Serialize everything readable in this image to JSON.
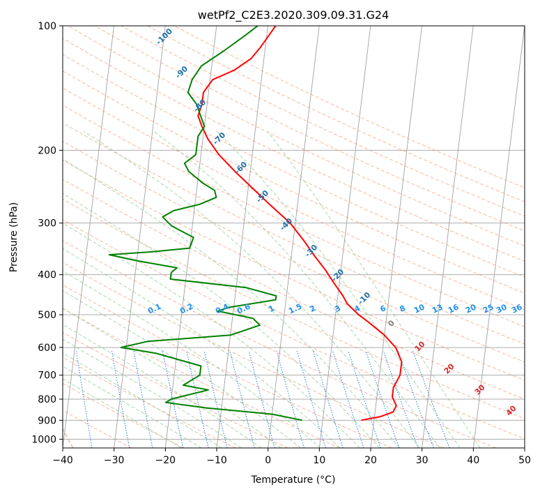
{
  "chart_data": {
    "type": "line",
    "title": "wetPf2_C2E3.2020.309.09.31.G24",
    "xlabel": "Temperature (°C)",
    "ylabel": "Pressure (hPa)",
    "xlim": [
      -40,
      50
    ],
    "ylim": [
      1050,
      100
    ],
    "y_scale": "log",
    "grid": true,
    "x_ticks": [
      -40,
      -30,
      -20,
      -10,
      0,
      10,
      20,
      30,
      40,
      50
    ],
    "x_tick_labels": [
      "−40",
      "−30",
      "−20",
      "−10",
      "0",
      "10",
      "20",
      "30",
      "40",
      "50"
    ],
    "y_ticks": [
      100,
      200,
      300,
      400,
      500,
      600,
      700,
      800,
      900,
      1000
    ],
    "y_tick_labels": [
      "100",
      "200",
      "300",
      "400",
      "500",
      "600",
      "700",
      "800",
      "900",
      "1000"
    ],
    "skew_per_decade": 72,
    "series": [
      {
        "kind": "temperature",
        "color": "#ff0000",
        "points": [
          [
            17.5,
            900
          ],
          [
            21.0,
            883
          ],
          [
            23.5,
            860
          ],
          [
            24.0,
            830
          ],
          [
            23.0,
            790
          ],
          [
            23.0,
            750
          ],
          [
            24.0,
            700
          ],
          [
            24.0,
            650
          ],
          [
            22.5,
            600
          ],
          [
            20.0,
            560
          ],
          [
            16.5,
            520
          ],
          [
            14.5,
            500
          ],
          [
            12.0,
            470
          ],
          [
            11.0,
            450
          ],
          [
            9.0,
            420
          ],
          [
            7.0,
            390
          ],
          [
            4.5,
            360
          ],
          [
            2.0,
            330
          ],
          [
            -1.0,
            300
          ],
          [
            -5.5,
            270
          ],
          [
            -9.5,
            245
          ],
          [
            -13.0,
            225
          ],
          [
            -16.5,
            205
          ],
          [
            -19.0,
            188
          ],
          [
            -20.5,
            175
          ],
          [
            -21.5,
            165
          ],
          [
            -21.0,
            155
          ],
          [
            -21.0,
            145
          ],
          [
            -19.5,
            135
          ],
          [
            -15.5,
            128
          ],
          [
            -12.5,
            120
          ],
          [
            -11.0,
            113
          ],
          [
            -9.5,
            105
          ],
          [
            -8.5,
            100
          ]
        ]
      },
      {
        "kind": "dewpoint",
        "color": "#008000",
        "points": [
          [
            6.0,
            900
          ],
          [
            0.0,
            870
          ],
          [
            -13.0,
            840
          ],
          [
            -21.0,
            815
          ],
          [
            -20.0,
            800
          ],
          [
            -13.0,
            760
          ],
          [
            -18.0,
            740
          ],
          [
            -15.0,
            700
          ],
          [
            -15.0,
            665
          ],
          [
            -24.0,
            620
          ],
          [
            -31.0,
            600
          ],
          [
            -26.0,
            580
          ],
          [
            -10.0,
            560
          ],
          [
            -4.5,
            530
          ],
          [
            -6.0,
            510
          ],
          [
            -13.0,
            490
          ],
          [
            -11.0,
            480
          ],
          [
            -2.0,
            460
          ],
          [
            -2.0,
            450
          ],
          [
            -8.0,
            430
          ],
          [
            -23.0,
            410
          ],
          [
            -23.0,
            395
          ],
          [
            -22.0,
            385
          ],
          [
            -30.0,
            370
          ],
          [
            -35.5,
            358
          ],
          [
            -27.0,
            352
          ],
          [
            -20.0,
            345
          ],
          [
            -19.5,
            325
          ],
          [
            -24.0,
            305
          ],
          [
            -26.0,
            290
          ],
          [
            -24.0,
            280
          ],
          [
            -19.0,
            270
          ],
          [
            -16.0,
            260
          ],
          [
            -16.5,
            250
          ],
          [
            -19.0,
            240
          ],
          [
            -22.0,
            225
          ],
          [
            -23.0,
            215
          ],
          [
            -21.0,
            205
          ],
          [
            -21.0,
            195
          ],
          [
            -21.0,
            185
          ],
          [
            -20.0,
            175
          ],
          [
            -21.0,
            165
          ],
          [
            -22.0,
            155
          ],
          [
            -24.0,
            145
          ],
          [
            -23.5,
            135
          ],
          [
            -22.0,
            125
          ],
          [
            -18.0,
            115
          ],
          [
            -14.0,
            105
          ],
          [
            -12.0,
            100
          ]
        ]
      }
    ],
    "dry_adiabat_labels": [
      "-100",
      "-90",
      "-80",
      "-70",
      "-60",
      "-50",
      "-40",
      "-30",
      "-20",
      "-10",
      "0",
      "10",
      "20",
      "30",
      "40"
    ],
    "mixing_ratio_labels": [
      "0.1",
      "0.2",
      "0.4",
      "0.6",
      "1",
      "1.5",
      "2",
      "3",
      "4",
      "6",
      "8",
      "10",
      "13",
      "16",
      "20",
      "25",
      "30",
      "36"
    ],
    "colors": {
      "isotherm": "#a0a0a0",
      "isobar": "#a0a0a0",
      "dry_adiabat": "#f4a582",
      "moist_adiabat": "#9fd19f",
      "mixing_ratio": "#1f77e4",
      "dry_label_cold": "#1f6fa8",
      "dry_label_zero": "#808080",
      "dry_label_warm": "#d62728",
      "mixing_label": "#1f8ff0",
      "lcl_curve": "#d9b38c"
    }
  }
}
